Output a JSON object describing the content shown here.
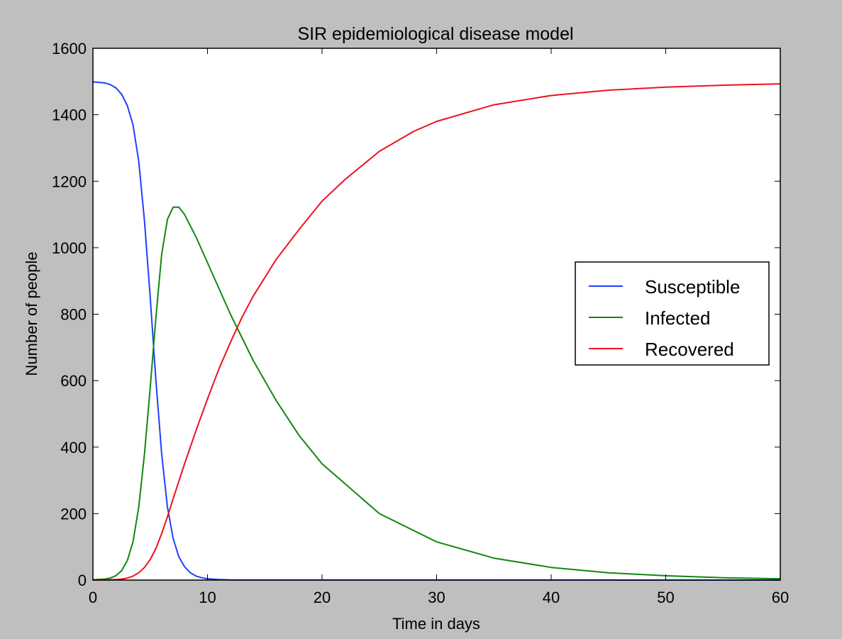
{
  "chart_data": {
    "type": "line",
    "title": "SIR epidemiological disease model",
    "xlabel": "Time in days",
    "ylabel": "Number of people",
    "xlim": [
      0,
      60
    ],
    "ylim": [
      0,
      1600
    ],
    "xticks": [
      0,
      10,
      20,
      30,
      40,
      50,
      60
    ],
    "yticks": [
      0,
      200,
      400,
      600,
      800,
      1000,
      1200,
      1400,
      1600
    ],
    "grid": false,
    "legend_position": "center-right",
    "series": [
      {
        "name": "Susceptible",
        "color": "#1f3fff",
        "x": [
          0,
          1,
          1.5,
          2,
          2.5,
          3,
          3.5,
          4,
          4.5,
          5,
          5.5,
          6,
          6.5,
          7,
          7.5,
          8,
          8.5,
          9,
          9.5,
          10,
          11,
          12,
          60
        ],
        "values": [
          1499,
          1496,
          1491,
          1481,
          1462,
          1428,
          1370,
          1260,
          1080,
          850,
          600,
          380,
          220,
          125,
          70,
          40,
          22,
          12,
          7,
          4,
          1.5,
          0.5,
          0
        ]
      },
      {
        "name": "Infected",
        "color": "#118811",
        "x": [
          0,
          1,
          1.5,
          2,
          2.5,
          3,
          3.5,
          4,
          4.5,
          5,
          5.5,
          6,
          6.5,
          7,
          7.5,
          8,
          9,
          10,
          12,
          14,
          16,
          18,
          20,
          25,
          30,
          35,
          40,
          45,
          50,
          55,
          60
        ],
        "values": [
          1,
          3,
          6,
          13,
          28,
          58,
          115,
          220,
          380,
          580,
          790,
          980,
          1085,
          1122,
          1122,
          1100,
          1032,
          955,
          800,
          660,
          540,
          435,
          350,
          200,
          115,
          66,
          38,
          22,
          13,
          7,
          4
        ]
      },
      {
        "name": "Recovered",
        "color": "#ee1122",
        "x": [
          0,
          1,
          2,
          2.5,
          3,
          3.5,
          4,
          4.5,
          5,
          5.5,
          6,
          6.5,
          7,
          8,
          9,
          10,
          11,
          12,
          13,
          14,
          16,
          18,
          20,
          22,
          25,
          28,
          30,
          35,
          40,
          45,
          50,
          55,
          60
        ],
        "values": [
          0,
          0.5,
          1.5,
          3,
          6,
          12,
          22,
          38,
          62,
          95,
          140,
          190,
          245,
          350,
          450,
          545,
          635,
          715,
          790,
          855,
          965,
          1055,
          1140,
          1205,
          1290,
          1350,
          1380,
          1430,
          1458,
          1474,
          1483,
          1489,
          1493
        ]
      }
    ]
  }
}
